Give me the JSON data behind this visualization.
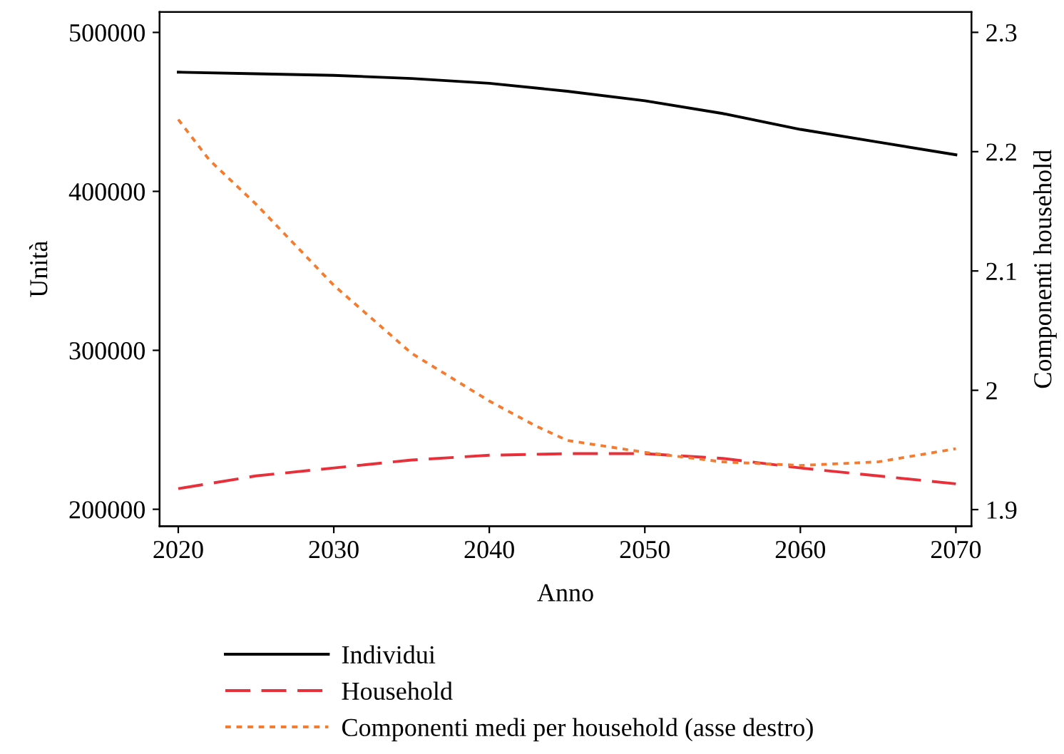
{
  "chart_data": {
    "type": "line",
    "xlabel": "Anno",
    "ylabel": "Unità",
    "y2label": "Componenti household",
    "x": [
      2020,
      2025,
      2030,
      2035,
      2040,
      2045,
      2050,
      2055,
      2060,
      2065,
      2070
    ],
    "xlim": [
      2018.8,
      2071
    ],
    "xticks": [
      2020,
      2030,
      2040,
      2050,
      2060,
      2070
    ],
    "ylim": [
      189300,
      512800
    ],
    "yticks": [
      200000,
      300000,
      400000,
      500000
    ],
    "y2lim": [
      1.886,
      2.317
    ],
    "y2ticks": [
      1.9,
      {
        "value": 2,
        "label": "2"
      },
      2.1,
      2.2,
      2.3
    ],
    "grid": false,
    "legend": "bottom",
    "marker": "none",
    "series": [
      {
        "name": "Individui",
        "color": "#000000",
        "line_style": "solid",
        "values": [
          475000,
          474000,
          473000,
          471000,
          468000,
          463000,
          457000,
          449000,
          439000,
          431000,
          423000
        ]
      },
      {
        "name": "Household",
        "color": "#e8303a",
        "line_style": "dashed",
        "values": [
          213000,
          221000,
          226000,
          231000,
          234000,
          235000,
          235000,
          232000,
          226000,
          221000,
          216000
        ]
      },
      {
        "name": "Componenti medi per household (asse destro)",
        "color": "#f47c30",
        "line_style": "dotted",
        "axis": "y2",
        "x": [
          2020,
          2022,
          2025,
          2030,
          2035,
          2040,
          2043,
          2045,
          2050,
          2055,
          2060,
          2065,
          2070
        ],
        "values": [
          2.227,
          2.193,
          2.156,
          2.088,
          2.031,
          1.991,
          1.97,
          1.958,
          1.948,
          1.94,
          1.937,
          1.94,
          1.951
        ]
      }
    ]
  }
}
